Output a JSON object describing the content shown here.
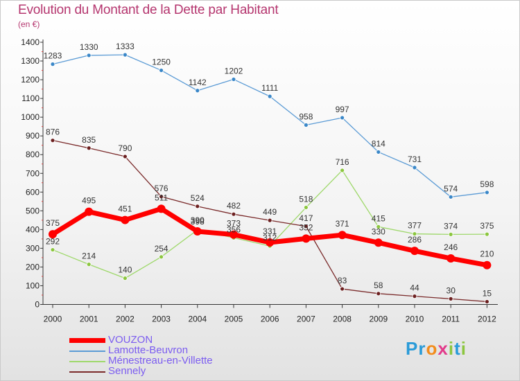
{
  "title": "Evolution du Montant de la Dette par Habitant",
  "subtitle": "(en €)",
  "logo": {
    "letters": [
      "P",
      "r",
      "o",
      "x",
      "i",
      "t",
      "i"
    ],
    "colors": [
      "#2a9bd8",
      "#2a9bd8",
      "#f28c1c",
      "#e23a8a",
      "#8cc63f",
      "#2a9bd8",
      "#8cc63f"
    ]
  },
  "chart_data": {
    "type": "line",
    "x": [
      "2000",
      "2001",
      "2002",
      "2003",
      "2004",
      "2005",
      "2006",
      "2007",
      "2008",
      "2009",
      "2010",
      "2011",
      "2012"
    ],
    "ylim": [
      0,
      1400
    ],
    "yticks": [
      0,
      100,
      200,
      300,
      400,
      500,
      600,
      700,
      800,
      900,
      1000,
      1100,
      1200,
      1300,
      1400
    ],
    "grid": "none",
    "legend_position": "bottom-left",
    "series": [
      {
        "name": "Lamotte-Beuvron",
        "color": "#5b9bd5",
        "point": "#3a87c8",
        "width": 1.3,
        "radius": 3,
        "values": [
          1283,
          1330,
          1333,
          1250,
          1142,
          1202,
          1111,
          958,
          997,
          814,
          731,
          574,
          598
        ]
      },
      {
        "name": "Ménestreau-en-Villette",
        "color": "#9ed86a",
        "point": "#8cc63f",
        "width": 1.3,
        "radius": 3,
        "values": [
          292,
          214,
          140,
          254,
          398,
          356,
          312,
          518,
          716,
          415,
          377,
          374,
          375
        ]
      },
      {
        "name": "Sennely",
        "color": "#7a2a2a",
        "point": "#6b1f1f",
        "width": 1.3,
        "radius": 3,
        "values": [
          876,
          835,
          790,
          576,
          524,
          482,
          449,
          417,
          83,
          58,
          44,
          30,
          15
        ]
      },
      {
        "name": "VOUZON",
        "color": "#ff0000",
        "point": "#ff0000",
        "width": 7,
        "radius": 6,
        "values": [
          375,
          495,
          451,
          511,
          390,
          373,
          331,
          352,
          371,
          330,
          286,
          246,
          210
        ]
      }
    ],
    "data_labels": [
      {
        "series": "Lamotte-Beuvron",
        "text": [
          "1283",
          "1330",
          "1333",
          "1250",
          "1142",
          "1202",
          "1111",
          "958",
          "997",
          "814",
          "731",
          "574",
          "598"
        ]
      },
      {
        "series": "Ménestreau-en-Villette",
        "text": [
          "292",
          "214",
          "140",
          "254",
          "398",
          "356",
          "312",
          "518",
          "716",
          "415",
          "377",
          "374",
          "375"
        ]
      },
      {
        "series": "Sennely",
        "text": [
          "876",
          "835",
          "790",
          "576",
          "524",
          "482",
          "449",
          "417",
          "83",
          "58",
          "44",
          "30",
          "15"
        ]
      },
      {
        "series": "VOUZON",
        "text": [
          "375",
          "495",
          "451",
          "511",
          "390",
          "373",
          "331",
          "352",
          "371",
          "330",
          "286",
          "246",
          "210"
        ]
      }
    ],
    "legend_order": [
      "VOUZON",
      "Lamotte-Beuvron",
      "Ménestreau-en-Villette",
      "Sennely"
    ]
  }
}
